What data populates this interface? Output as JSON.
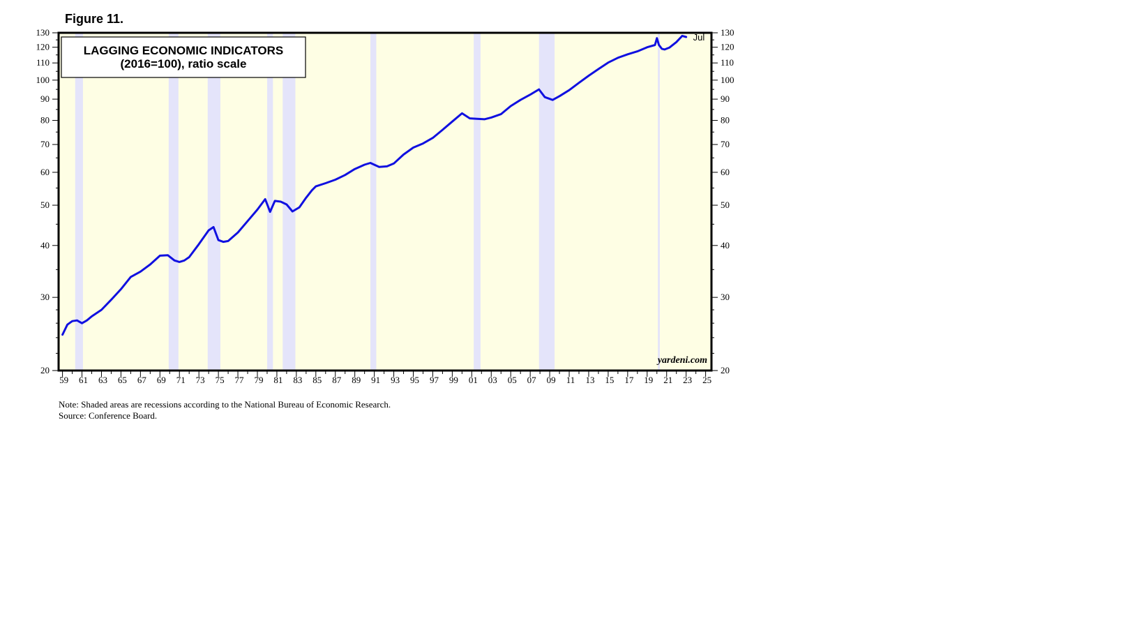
{
  "figure_label": "Figure 11.",
  "chart_data": {
    "type": "line",
    "title": "LAGGING ECONOMIC INDICATORS",
    "subtitle": "(2016=100), ratio scale",
    "ylim": [
      20,
      130
    ],
    "y_scale": "log",
    "y_ticks": [
      20,
      30,
      40,
      50,
      60,
      70,
      80,
      90,
      100,
      110,
      120,
      130
    ],
    "xlim": [
      1958.6,
      2025.6
    ],
    "x_tick_labels": [
      "59",
      "61",
      "63",
      "65",
      "67",
      "69",
      "71",
      "73",
      "75",
      "77",
      "79",
      "81",
      "83",
      "85",
      "87",
      "89",
      "91",
      "93",
      "95",
      "97",
      "99",
      "01",
      "03",
      "05",
      "07",
      "09",
      "11",
      "13",
      "15",
      "17",
      "19",
      "21",
      "23",
      "25"
    ],
    "end_label": "Jul",
    "watermark": "yardeni.com",
    "colors": {
      "line": "#1010e0",
      "background": "#fefee4",
      "recession": "#e4e4fa",
      "frame": "#000000"
    },
    "recessions": [
      [
        1960.3,
        1961.1
      ],
      [
        1969.9,
        1970.9
      ],
      [
        1973.9,
        1975.2
      ],
      [
        1980.0,
        1980.6
      ],
      [
        1981.6,
        1982.9
      ],
      [
        1990.6,
        1991.2
      ],
      [
        2001.2,
        2001.9
      ],
      [
        2007.9,
        2009.5
      ],
      [
        2020.1,
        2020.3
      ]
    ],
    "series": [
      {
        "x": [
          1959.0,
          1959.5,
          1960.0,
          1960.5,
          1961.0,
          1961.5,
          1962.0,
          1963.0,
          1964.0,
          1965.0,
          1966.0,
          1967.0,
          1968.0,
          1969.0,
          1969.8,
          1970.5,
          1971.0,
          1971.5,
          1972.0,
          1973.0,
          1974.0,
          1974.5,
          1975.0,
          1975.5,
          1976.0,
          1977.0,
          1978.0,
          1979.0,
          1979.8,
          1980.3,
          1980.8,
          1981.4,
          1982.0,
          1982.6,
          1983.3,
          1984.0,
          1984.6,
          1985.0,
          1986.0,
          1987.0,
          1988.0,
          1989.0,
          1990.0,
          1990.6,
          1991.5,
          1992.3,
          1993.0,
          1994.0,
          1995.0,
          1996.0,
          1997.0,
          1998.0,
          1999.0,
          2000.0,
          2000.8,
          2001.5,
          2002.3,
          2003.0,
          2004.0,
          2005.0,
          2006.0,
          2007.0,
          2007.9,
          2008.5,
          2009.3,
          2010.0,
          2011.0,
          2012.0,
          2013.0,
          2014.0,
          2015.0,
          2016.0,
          2017.0,
          2018.0,
          2019.0,
          2019.8,
          2020.0,
          2020.2,
          2020.5,
          2020.8,
          2021.3,
          2022.0,
          2022.6,
          2023.0
        ],
        "values": [
          24.4,
          25.8,
          26.3,
          26.4,
          26.0,
          26.4,
          27.0,
          28.0,
          29.6,
          31.4,
          33.6,
          34.6,
          36.0,
          37.8,
          37.9,
          36.8,
          36.5,
          36.8,
          37.5,
          40.3,
          43.5,
          44.3,
          41.2,
          40.8,
          41.0,
          43.0,
          45.8,
          48.8,
          51.7,
          48.2,
          51.2,
          51.0,
          50.2,
          48.3,
          49.4,
          52.1,
          54.3,
          55.5,
          56.5,
          57.6,
          59.1,
          61.1,
          62.6,
          63.2,
          61.8,
          62.0,
          63.0,
          66.2,
          68.8,
          70.4,
          72.6,
          75.9,
          79.5,
          83.2,
          80.9,
          80.7,
          80.5,
          81.3,
          82.8,
          86.6,
          89.6,
          92.3,
          95.0,
          91.0,
          89.6,
          91.5,
          94.6,
          98.5,
          102.5,
          106.3,
          110.2,
          113.2,
          115.4,
          117.3,
          120.0,
          121.5,
          126.2,
          121.6,
          119.0,
          118.5,
          119.8,
          123.5,
          127.8,
          127.0
        ]
      }
    ]
  },
  "note": "Note: Shaded areas are recessions according to the National Bureau of Economic Research.",
  "source": "Source: Conference Board."
}
